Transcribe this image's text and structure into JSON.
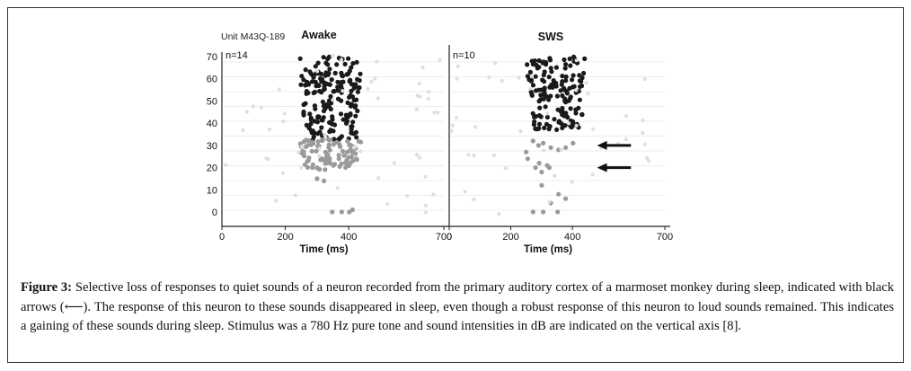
{
  "figure": {
    "unit_label": "Unit M43Q-189",
    "caption_label": "Figure 3:",
    "caption_text": "Selective loss of responses to quiet sounds of a neuron recorded from the primary auditory cortex of a marmoset monkey during sleep, indicated with black arrows (⟵). The response of this neuron to these sounds disappeared in sleep, even though a robust response of this neuron to loud sounds remained. This indicates a gaining of these sounds during sleep. Stimulus was a 780 Hz pure tone and sound intensities in dB are indicated on the vertical axis [8]."
  },
  "colors": {
    "strong": "#1a1a1a",
    "medium": "#9a9a9a",
    "faint": "#dedede",
    "arrow": "#111111",
    "axis": "#222222"
  },
  "chart_data": [
    {
      "type": "scatter",
      "title": "Awake",
      "count_label": "n=14",
      "xlabel": "Time (ms)",
      "ylabel": "",
      "xlim": [
        0,
        700
      ],
      "ylim": [
        0,
        70
      ],
      "xticks": [
        0,
        200,
        400,
        700
      ],
      "yticks": [
        0,
        10,
        20,
        30,
        40,
        50,
        60,
        70
      ],
      "response_window_ms": [
        240,
        440
      ],
      "series": [
        {
          "role": "strong",
          "level_range": [
            32,
            70
          ],
          "n": 190
        },
        {
          "role": "medium",
          "level_range": [
            19,
            33
          ],
          "n": 90
        },
        {
          "role": "medium",
          "points": [
            [
              348,
              0
            ],
            [
              378,
              0
            ],
            [
              402,
              0
            ],
            [
              412,
              1
            ],
            [
              300,
              15
            ],
            [
              322,
              14
            ]
          ]
        },
        {
          "role": "faint",
          "n": 55
        }
      ],
      "arrows": []
    },
    {
      "type": "scatter",
      "title": "SWS",
      "count_label": "n=10",
      "xlabel": "Time (ms)",
      "ylabel": "",
      "xlim": [
        0,
        700
      ],
      "ylim": [
        0,
        70
      ],
      "xticks": [
        0,
        200,
        400,
        700
      ],
      "yticks": [],
      "response_window_ms": [
        240,
        440
      ],
      "series": [
        {
          "role": "strong",
          "level_range": [
            37,
            70
          ],
          "n": 150
        },
        {
          "role": "medium",
          "points": [
            [
              272,
              32
            ],
            [
              290,
              30
            ],
            [
              305,
              31
            ],
            [
              330,
              29
            ],
            [
              355,
              28
            ],
            [
              378,
              29
            ],
            [
              402,
              31
            ],
            [
              250,
              27
            ],
            [
              280,
              20
            ],
            [
              292,
              22
            ],
            [
              300,
              18
            ],
            [
              318,
              21
            ],
            [
              325,
              20
            ],
            [
              300,
              12
            ],
            [
              355,
              8
            ],
            [
              378,
              6
            ],
            [
              330,
              4
            ],
            [
              272,
              0
            ],
            [
              305,
              0
            ],
            [
              352,
              0
            ],
            [
              255,
              24
            ]
          ]
        },
        {
          "role": "faint",
          "n": 45
        }
      ],
      "arrows": [
        {
          "level": 30
        },
        {
          "level": 20
        }
      ]
    }
  ]
}
